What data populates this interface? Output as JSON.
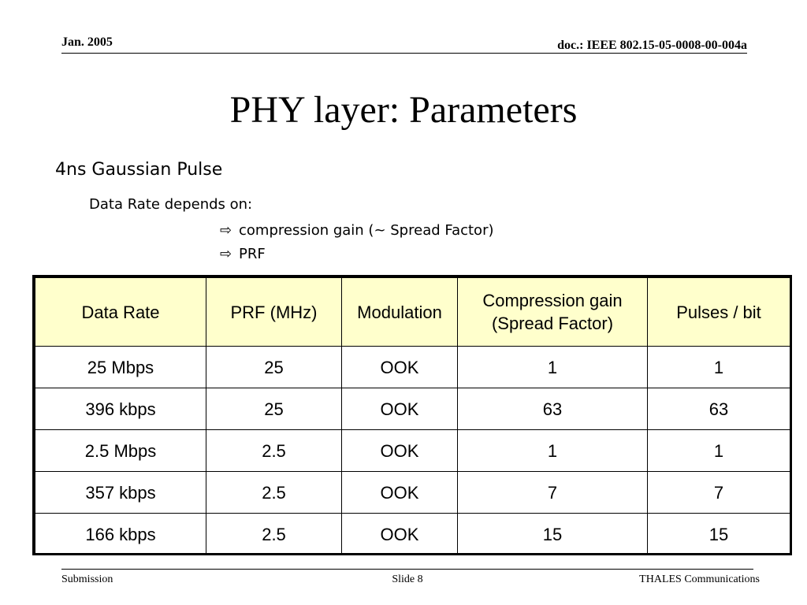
{
  "header": {
    "date": "Jan. 2005",
    "doc_id": "doc.: IEEE 802.15-05-0008-00-004a"
  },
  "title": "PHY layer: Parameters",
  "body": {
    "line1": "4ns Gaussian Pulse",
    "line2": "Data Rate depends on:",
    "bullets": [
      {
        "icon": "hollow-arrow-icon",
        "glyph": "⇨",
        "text": "compression gain (~ Spread Factor)"
      },
      {
        "icon": "hollow-arrow-icon",
        "glyph": "⇨",
        "text": "PRF"
      }
    ]
  },
  "table": {
    "header_fill": "#ffffcc",
    "headers": [
      "Data Rate",
      "PRF (MHz)",
      "Modulation",
      "Compression gain\n(Spread Factor)",
      "Pulses / bit"
    ],
    "rows": [
      [
        "25 Mbps",
        "25",
        "OOK",
        "1",
        "1"
      ],
      [
        "396 kbps",
        "25",
        "OOK",
        "63",
        "63"
      ],
      [
        "2.5 Mbps",
        "2.5",
        "OOK",
        "1",
        "1"
      ],
      [
        "357 kbps",
        "2.5",
        "OOK",
        "7",
        "7"
      ],
      [
        "166 kbps",
        "2.5",
        "OOK",
        "15",
        "15"
      ]
    ]
  },
  "footer": {
    "left": "Submission",
    "center": "Slide 8",
    "right": "THALES Communications"
  }
}
